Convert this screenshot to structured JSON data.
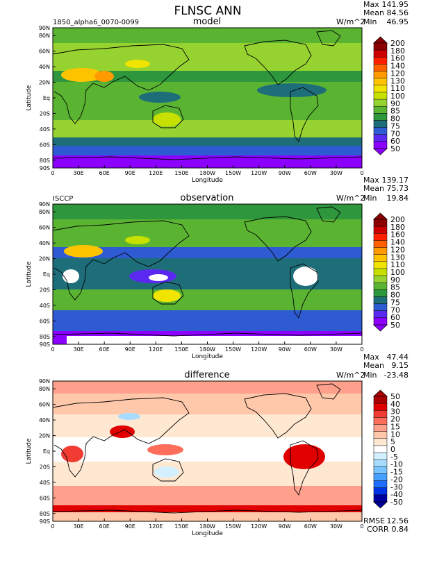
{
  "figure": {
    "title": "FLNSC ANN",
    "units": "W/m^2",
    "xlabel": "Longitude",
    "ylabel": "Latitude",
    "x_ticks": [
      "0",
      "30E",
      "60E",
      "90E",
      "120E",
      "150E",
      "180W",
      "150W",
      "120W",
      "90W",
      "60W",
      "30W",
      "0"
    ],
    "y_ticks": [
      "90N",
      "80N",
      "60N",
      "40N",
      "20N",
      "Eq",
      "20S",
      "40S",
      "60S",
      "80S",
      "90S"
    ]
  },
  "chart_data": [
    {
      "type": "heatmap",
      "panel_title": "model",
      "left_label": "1850_alpha6_0070-0099",
      "units": "W/m^2",
      "stats": [
        {
          "label": "Max",
          "value": "141.95"
        },
        {
          "label": "Mean",
          "value": "84.56"
        },
        {
          "label": "Min",
          "value": "46.95"
        }
      ],
      "colorbar_levels": [
        "200",
        "180",
        "160",
        "140",
        "120",
        "130",
        "110",
        "100",
        "90",
        "85",
        "80",
        "75",
        "70",
        "60",
        "50"
      ]
    },
    {
      "type": "heatmap",
      "panel_title": "observation",
      "left_label": "ISCCP",
      "units": "W/m^2",
      "stats": [
        {
          "label": "Max",
          "value": "139.17"
        },
        {
          "label": "Mean",
          "value": "75.73"
        },
        {
          "label": "Min",
          "value": "19.84"
        }
      ],
      "colorbar_levels": [
        "200",
        "180",
        "160",
        "140",
        "120",
        "130",
        "110",
        "100",
        "90",
        "85",
        "80",
        "75",
        "70",
        "60",
        "50"
      ]
    },
    {
      "type": "heatmap",
      "panel_title": "difference",
      "left_label": "",
      "units": "W/m^2",
      "stats": [
        {
          "label": "Max",
          "value": "47.44"
        },
        {
          "label": "Mean",
          "value": "9.15"
        },
        {
          "label": "Min",
          "value": "-23.48"
        }
      ],
      "extra_stats": [
        {
          "label": "RMSE",
          "value": "12.56"
        },
        {
          "label": "CORR",
          "value": "0.84"
        }
      ],
      "colorbar_levels": [
        "50",
        "40",
        "30",
        "20",
        "15",
        "10",
        "5",
        "0",
        "-5",
        "-10",
        "-15",
        "-20",
        "-30",
        "-40",
        "-50"
      ]
    }
  ],
  "colors": {
    "abs_scale": [
      "#8b0000",
      "#cc0000",
      "#ff2000",
      "#ff6000",
      "#ff9a00",
      "#ffc400",
      "#f0e400",
      "#c8e000",
      "#96d230",
      "#5ab432",
      "#2e963c",
      "#1e6e7a",
      "#2e5ad2",
      "#5a28f0",
      "#8c00ff"
    ],
    "diff_scale": [
      "#a80000",
      "#e00000",
      "#f03c32",
      "#ff6e5a",
      "#ffa08c",
      "#ffc8aa",
      "#ffe8d2",
      "#ffffff",
      "#d2f0ff",
      "#a8dcff",
      "#78c4ff",
      "#46a0ff",
      "#1e6eff",
      "#0032e6",
      "#0000a0"
    ]
  }
}
